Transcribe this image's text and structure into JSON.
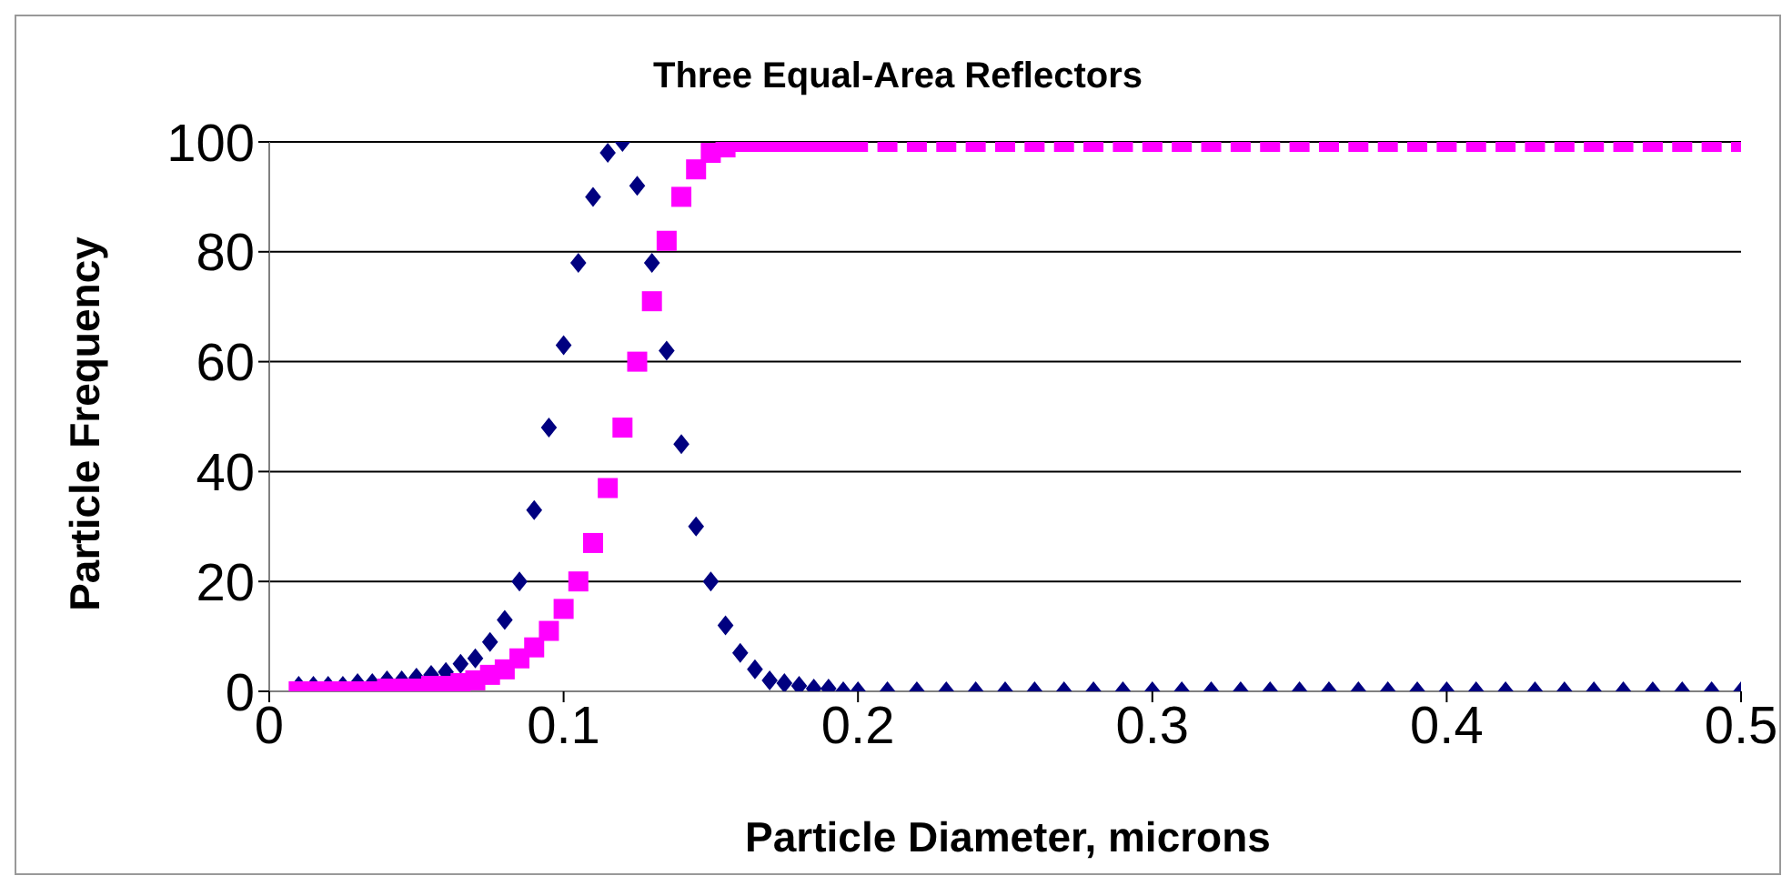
{
  "chart_data": {
    "type": "scatter",
    "title": "Three Equal-Area Reflectors",
    "xlabel": "Particle Diameter, microns",
    "ylabel": "Particle Frequency",
    "x": [
      0.01,
      0.015,
      0.02,
      0.025,
      0.03,
      0.035,
      0.04,
      0.045,
      0.05,
      0.055,
      0.06,
      0.065,
      0.07,
      0.075,
      0.08,
      0.085,
      0.09,
      0.095,
      0.1,
      0.105,
      0.11,
      0.115,
      0.12,
      0.125,
      0.13,
      0.135,
      0.14,
      0.145,
      0.15,
      0.155,
      0.16,
      0.165,
      0.17,
      0.175,
      0.18,
      0.185,
      0.19,
      0.195,
      0.2,
      0.21,
      0.22,
      0.23,
      0.24,
      0.25,
      0.26,
      0.27,
      0.28,
      0.29,
      0.3,
      0.31,
      0.32,
      0.33,
      0.34,
      0.35,
      0.36,
      0.37,
      0.38,
      0.39,
      0.4,
      0.41,
      0.42,
      0.43,
      0.44,
      0.45,
      0.46,
      0.47,
      0.48,
      0.49,
      0.5
    ],
    "series": [
      {
        "color": "#000080",
        "marker": "diamond",
        "values": [
          1,
          1,
          1,
          1,
          1.5,
          1.5,
          2,
          2,
          2.5,
          3,
          3.5,
          5,
          6,
          9,
          13,
          20,
          33,
          48,
          63,
          78,
          90,
          98,
          100,
          92,
          78,
          62,
          45,
          30,
          20,
          12,
          7,
          4,
          2,
          1.5,
          1,
          0.5,
          0.5,
          0,
          0,
          0,
          0,
          0,
          0,
          0,
          0,
          0,
          0,
          0,
          0,
          0,
          0,
          0,
          0,
          0,
          0,
          0,
          0,
          0,
          0,
          0,
          0,
          0,
          0,
          0,
          0,
          0,
          0,
          0,
          0
        ]
      },
      {
        "color": "#ff00ff",
        "marker": "square",
        "values": [
          0,
          0,
          0,
          0,
          0,
          0,
          0.5,
          0.5,
          0.5,
          1,
          1,
          1.5,
          2,
          3,
          4,
          6,
          8,
          11,
          15,
          20,
          27,
          37,
          48,
          60,
          71,
          82,
          90,
          95,
          98,
          99,
          100,
          100,
          100,
          100,
          100,
          100,
          100,
          100,
          100,
          100,
          100,
          100,
          100,
          100,
          100,
          100,
          100,
          100,
          100,
          100,
          100,
          100,
          100,
          100,
          100,
          100,
          100,
          100,
          100,
          100,
          100,
          100,
          100,
          100,
          100,
          100,
          100,
          100,
          100
        ]
      }
    ],
    "xlim": [
      0,
      0.5
    ],
    "xticks": [
      0,
      0.1,
      0.2,
      0.3,
      0.4,
      0.5
    ],
    "ylim": [
      0,
      100
    ],
    "yticks": [
      0,
      20,
      40,
      60,
      80,
      100
    ],
    "grid": "y"
  }
}
